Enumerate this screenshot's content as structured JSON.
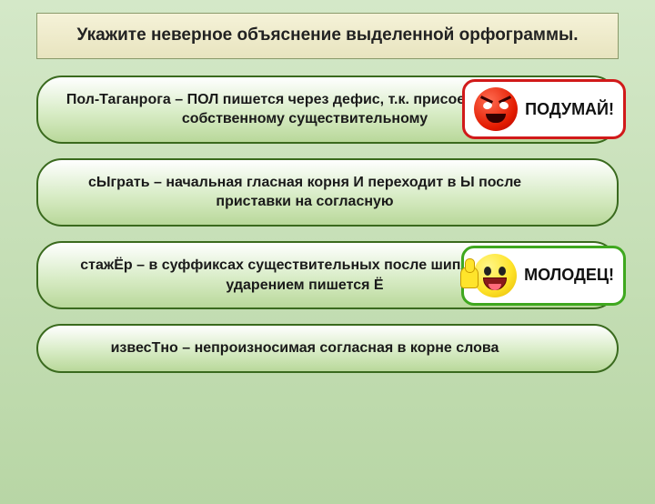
{
  "title": "Укажите неверное объяснение выделенной орфограммы.",
  "options": [
    {
      "text": "Пол-Таганрога – ПОЛ пишется через дефис, т.к. присоединяется к собственному существительному",
      "callout": {
        "type": "red",
        "label": "ПОДУМАЙ!",
        "icon": "angry"
      }
    },
    {
      "text": "сЫграть – начальная гласная корня И переходит в Ы после приставки на согласную",
      "callout": null
    },
    {
      "text": "стажЁр – в суффиксах существительных после шипящих под ударением пишется Ё",
      "callout": {
        "type": "green",
        "label": "МОЛОДЕЦ!",
        "icon": "happy"
      }
    },
    {
      "text": "извесТно – непроизносимая согласная в корне слова",
      "callout": null
    }
  ],
  "colors": {
    "bg_top": "#d4e8c8",
    "bg_bottom": "#b8d6a5",
    "title_bg_top": "#f5f2d8",
    "title_bg_bottom": "#e8e4bf",
    "option_border": "#3a6a1e",
    "callout_red": "#d11a1a",
    "callout_green": "#3fa81f"
  }
}
